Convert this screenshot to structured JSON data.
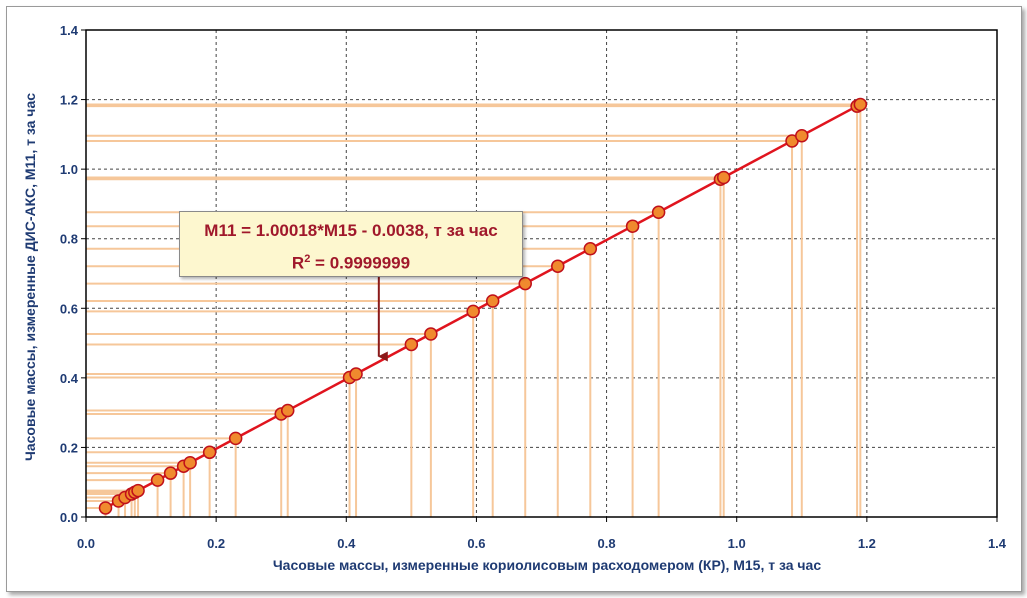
{
  "chart_data": {
    "type": "scatter",
    "xlabel": "Часовые массы, измеренные кориолисовым расходомером (КР), М15, т за час",
    "ylabel": "Часовые массы, измеренные ДИС-АКС, М11, т за час",
    "xlim": [
      0.0,
      1.4
    ],
    "ylim": [
      0.0,
      1.4
    ],
    "xticks": [
      "0.0",
      "0.2",
      "0.4",
      "0.6",
      "0.8",
      "1.0",
      "1.2",
      "1.4"
    ],
    "yticks": [
      "0.0",
      "0.2",
      "0.4",
      "0.6",
      "0.8",
      "1.0",
      "1.2",
      "1.4"
    ],
    "grid": true,
    "x": [
      0.03,
      0.05,
      0.06,
      0.07,
      0.075,
      0.08,
      0.11,
      0.13,
      0.15,
      0.16,
      0.19,
      0.23,
      0.3,
      0.31,
      0.405,
      0.415,
      0.5,
      0.53,
      0.595,
      0.625,
      0.675,
      0.725,
      0.775,
      0.84,
      0.88,
      0.975,
      0.98,
      1.085,
      1.1,
      1.185,
      1.19
    ],
    "y": [
      0.026,
      0.046,
      0.056,
      0.066,
      0.071,
      0.076,
      0.106,
      0.126,
      0.146,
      0.156,
      0.186,
      0.226,
      0.296,
      0.306,
      0.401,
      0.411,
      0.496,
      0.526,
      0.591,
      0.621,
      0.671,
      0.721,
      0.771,
      0.836,
      0.876,
      0.971,
      0.976,
      1.081,
      1.096,
      1.181,
      1.186
    ],
    "fit": {
      "slope": 1.00018,
      "intercept": -0.0038,
      "x_range": [
        0.03,
        1.19
      ]
    },
    "annotation": {
      "equation": "M11 = 1.00018*M15 - 0.0038, т за час",
      "r2_prefix": "R",
      "r2_sup": "2",
      "r2_value": " = 0.9999999",
      "arrow_target": [
        0.45,
        0.45
      ]
    },
    "colors": {
      "line": "#e0141e",
      "marker_fill": "#f08a2e",
      "marker_stroke": "#c0101a",
      "dropline": "#f6c79a",
      "arrow": "#8b1a1a",
      "text": "#1f3b73"
    }
  }
}
